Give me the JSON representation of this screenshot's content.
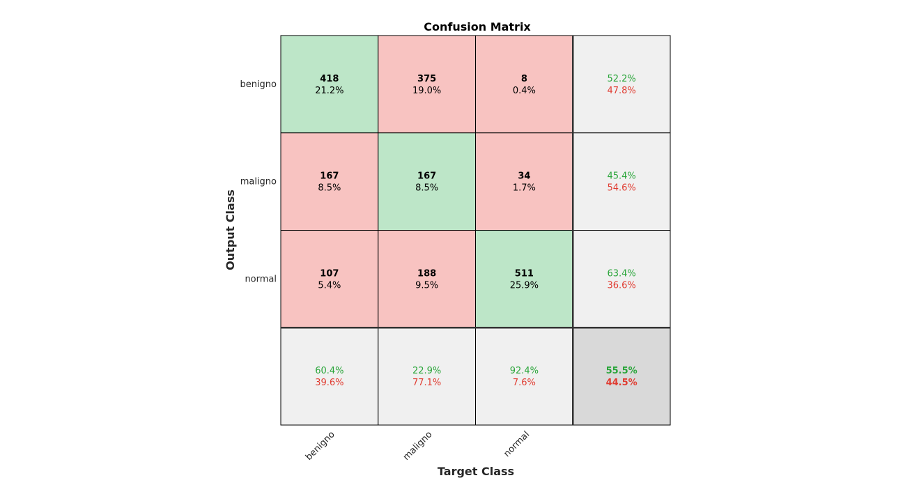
{
  "chart_data": {
    "type": "heatmap",
    "title": "Confusion Matrix",
    "xlabel": "Target Class",
    "ylabel": "Output Class",
    "classes": [
      "benigno",
      "maligno",
      "normal"
    ],
    "cells": [
      [
        {
          "count": "418",
          "percent": "21.2%"
        },
        {
          "count": "375",
          "percent": "19.0%"
        },
        {
          "count": "8",
          "percent": "0.4%"
        }
      ],
      [
        {
          "count": "167",
          "percent": "8.5%"
        },
        {
          "count": "167",
          "percent": "8.5%"
        },
        {
          "count": "34",
          "percent": "1.7%"
        }
      ],
      [
        {
          "count": "107",
          "percent": "5.4%"
        },
        {
          "count": "188",
          "percent": "9.5%"
        },
        {
          "count": "511",
          "percent": "25.9%"
        }
      ]
    ],
    "row_summary": [
      {
        "correct": "52.2%",
        "incorrect": "47.8%"
      },
      {
        "correct": "45.4%",
        "incorrect": "54.6%"
      },
      {
        "correct": "63.4%",
        "incorrect": "36.6%"
      }
    ],
    "column_summary": [
      {
        "correct": "60.4%",
        "incorrect": "39.6%"
      },
      {
        "correct": "22.9%",
        "incorrect": "77.1%"
      },
      {
        "correct": "92.4%",
        "incorrect": "7.6%"
      }
    ],
    "overall": {
      "correct": "55.5%",
      "incorrect": "44.5%"
    },
    "colors": {
      "diagonal": "#bde6c8",
      "off_diagonal": "#f8c3c1",
      "summary": "#f0f0f0",
      "overall": "#d9d9d9",
      "correct_text": "#2aa53a",
      "incorrect_text": "#e03c31"
    }
  }
}
